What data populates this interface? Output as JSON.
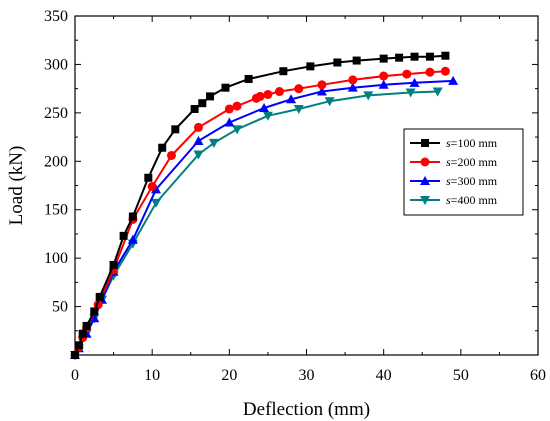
{
  "chart_data": {
    "type": "line",
    "title": "",
    "xlabel": "Deflection (mm)",
    "ylabel": "Load (kN)",
    "xlim": [
      0,
      60
    ],
    "ylim": [
      0,
      350
    ],
    "x_ticks": [
      0,
      10,
      20,
      30,
      40,
      50,
      60
    ],
    "y_ticks": [
      50,
      100,
      150,
      200,
      250,
      300,
      350
    ],
    "grid": false,
    "legend_position": "right",
    "series": [
      {
        "name_var": "s",
        "name_rest": "=100 mm",
        "color": "#000000",
        "marker": "square",
        "x": [
          0,
          0.5,
          1,
          1.5,
          2.5,
          3.2,
          5,
          6.3,
          7.5,
          9.5,
          11.3,
          13,
          15.5,
          16.5,
          17.5,
          19.5,
          22.5,
          27,
          30.5,
          34,
          36.5,
          40,
          42,
          44,
          46,
          48
        ],
        "y": [
          0,
          10,
          22,
          30,
          45,
          60,
          93,
          123,
          143,
          183,
          214,
          233,
          254,
          260,
          267,
          276,
          285,
          293,
          298,
          302,
          304,
          306,
          307,
          308,
          308,
          309
        ]
      },
      {
        "name_var": "s",
        "name_rest": "=200 mm",
        "color": "#ff0000",
        "marker": "circle",
        "x": [
          0,
          0.5,
          1,
          1.5,
          3,
          5,
          7.5,
          10,
          12.5,
          16,
          20,
          21,
          23.5,
          24,
          25,
          26.5,
          29,
          32,
          36,
          40,
          43,
          46,
          48
        ],
        "y": [
          0,
          8,
          18,
          28,
          52,
          88,
          140,
          174,
          206,
          235,
          254,
          257,
          265,
          267,
          269,
          272,
          275,
          279,
          284,
          288,
          290,
          292,
          293
        ]
      },
      {
        "name_var": "s",
        "name_rest": "=300 mm",
        "color": "#0000ff",
        "marker": "triangle-up",
        "x": [
          0,
          0.5,
          1.5,
          2.5,
          3.5,
          5,
          7.5,
          10.5,
          16,
          20,
          24.5,
          28,
          32,
          36,
          40,
          44,
          49
        ],
        "y": [
          0,
          7,
          22,
          38,
          57,
          86,
          119,
          171,
          221,
          240,
          255,
          264,
          272,
          276,
          279,
          281,
          283
        ]
      },
      {
        "name_var": "s",
        "name_rest": "=400 mm",
        "color": "#008080",
        "marker": "triangle-down",
        "x": [
          0,
          0.5,
          1.5,
          2.5,
          3.5,
          5,
          7.5,
          10.5,
          16,
          18,
          21,
          25,
          29,
          33,
          38,
          43.5,
          47
        ],
        "y": [
          0,
          7,
          22,
          38,
          57,
          82,
          115,
          157,
          207,
          219,
          233,
          247,
          254,
          262,
          268,
          271,
          272
        ]
      }
    ]
  }
}
